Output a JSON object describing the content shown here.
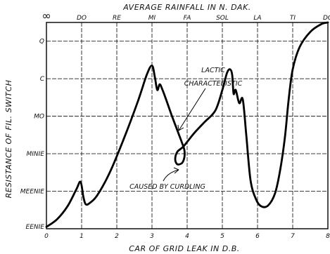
{
  "chart_data": {
    "type": "line",
    "title": "AVERAGE RAINFALL IN N. DAK.",
    "xlabel": "CAR OF GRID LEAK IN D.B.",
    "ylabel": "RESISTANCE OF FIL. SWITCH",
    "xlim": [
      0,
      8
    ],
    "ylim": [
      0,
      5.5
    ],
    "x_ticks": [
      "0",
      "1",
      "2",
      "3",
      "4",
      "5",
      "6",
      "7",
      "8"
    ],
    "top_ticks": [
      {
        "label": "∞",
        "x": 0
      },
      {
        "label": "DO",
        "x": 1
      },
      {
        "label": "RE",
        "x": 2
      },
      {
        "label": "MI",
        "x": 3
      },
      {
        "label": "FA",
        "x": 4
      },
      {
        "label": "SOL",
        "x": 5
      },
      {
        "label": "LA",
        "x": 6
      },
      {
        "label": "TI",
        "x": 7
      },
      {
        "label": "DO",
        "x": 8
      }
    ],
    "y_ticks": [
      {
        "label": "EENIE",
        "y": 0
      },
      {
        "label": "MEENIE",
        "y": 1
      },
      {
        "label": "MINIE",
        "y": 2
      },
      {
        "label": "MO",
        "y": 3
      },
      {
        "label": "C",
        "y": 4
      },
      {
        "label": "Q",
        "y": 5
      }
    ],
    "grid": true,
    "series": [
      {
        "x": [
          0,
          0.3,
          0.6,
          0.85,
          0.97,
          1.05,
          1.12,
          1.25,
          1.45,
          1.8,
          2.2,
          2.6,
          2.85,
          3.0,
          3.08,
          3.15,
          3.22,
          3.3,
          3.4,
          3.55,
          3.75,
          3.85,
          3.92,
          3.92,
          3.85,
          3.72,
          3.66,
          3.72,
          3.9,
          4.2,
          4.5,
          4.8,
          5.0,
          5.13,
          5.22,
          5.28,
          5.32,
          5.38,
          5.48,
          5.58,
          5.68,
          5.8,
          5.95,
          6.1,
          6.3,
          6.5,
          6.65,
          6.78,
          6.88,
          7.0,
          7.2,
          7.5,
          7.8,
          8.0
        ],
        "y": [
          0.05,
          0.25,
          0.6,
          1.05,
          1.25,
          0.85,
          0.65,
          0.7,
          0.9,
          1.5,
          2.4,
          3.4,
          4.1,
          4.35,
          4.05,
          3.7,
          3.85,
          3.7,
          3.45,
          3.05,
          2.55,
          2.3,
          2.1,
          1.9,
          1.75,
          1.72,
          1.85,
          2.05,
          2.2,
          2.55,
          2.85,
          3.15,
          3.7,
          4.15,
          4.25,
          4.1,
          3.6,
          3.7,
          3.35,
          3.45,
          2.5,
          1.3,
          0.8,
          0.6,
          0.62,
          0.95,
          1.6,
          2.45,
          3.4,
          4.25,
          4.85,
          5.25,
          5.45,
          5.5
        ]
      }
    ],
    "annotations": [
      {
        "text": "LACTIC",
        "x": 4.75,
        "y": 4.35
      },
      {
        "text": "CHARACTERISTIC",
        "x": 4.75,
        "y": 4.0
      },
      {
        "text": "CAUSED BY CURDLING",
        "x": 3.85,
        "y": 1.15
      }
    ]
  }
}
